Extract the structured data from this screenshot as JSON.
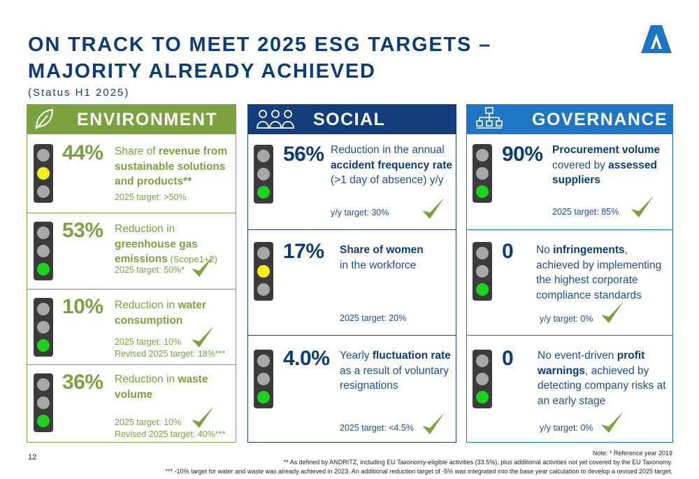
{
  "header": {
    "title_line1": "ON TRACK TO MEET 2025 ESG TARGETS –",
    "title_line2": "MAJORITY ALREADY ACHIEVED",
    "subtitle": "(Status H1 2025)",
    "logo": "andritz-logo-icon"
  },
  "colors": {
    "environment": "#7ba23f",
    "social": "#123f7b",
    "governance": "#1f75c4",
    "light_green": "#1fd11f",
    "light_yellow": "#f4ef1a",
    "light_off": "#a8a8a8"
  },
  "environment": {
    "title": "ENVIRONMENT",
    "icon": "leaf-icon",
    "items": [
      {
        "value": "44%",
        "pre": "Share of ",
        "bold": "revenue from sustainable solutions and products**",
        "post": "",
        "target": "2025 target: >50%",
        "target2": "",
        "light": "yellow",
        "check": false
      },
      {
        "value": "53%",
        "pre": "Reduction in ",
        "bold": "greenhouse gas emissions",
        "post": " (Scope1+2)",
        "target": "2025 target: 50%*",
        "target2": "",
        "light": "green",
        "check": true
      },
      {
        "value": "10%",
        "pre": "Reduction in ",
        "bold": "water consumption",
        "post": "",
        "target": "2025 target: 10%",
        "target2": "Revised 2025 target: 18%***",
        "light": "green",
        "check": true
      },
      {
        "value": "36%",
        "pre": "Reduction in ",
        "bold": "waste volume",
        "post": "",
        "target": "2025 target: 10%",
        "target2": "Revised 2025 target: 40%***",
        "light": "green",
        "check": true
      }
    ]
  },
  "social": {
    "title": "SOCIAL",
    "icon": "people-icon",
    "items": [
      {
        "value": "56%",
        "pre": "Reduction in the annual ",
        "bold": "accident frequency rate",
        "post": " (>1 day of absence) y/y",
        "target": "y/y target: 30%",
        "light": "green",
        "check": true
      },
      {
        "value": "17%",
        "pre": "",
        "bold": "Share of women",
        "post": " in the workforce",
        "target": "2025 target: 20%",
        "light": "yellow",
        "check": false
      },
      {
        "value": "4.0%",
        "pre": "Yearly ",
        "bold": "fluctuation rate",
        "post": " as a result of voluntary resignations",
        "target": "2025 target: <4.5%",
        "light": "green",
        "check": true
      }
    ]
  },
  "governance": {
    "title": "GOVERNANCE",
    "icon": "org-chart-icon",
    "items": [
      {
        "value": "90%",
        "pre": "",
        "bold": "Procurement volume",
        "mid": " covered by ",
        "bold2": "assessed suppliers",
        "post": "",
        "target": "2025 target: 85%",
        "light": "green",
        "check": true
      },
      {
        "value": "0",
        "pre": "No ",
        "bold": "infringements",
        "mid": ", achieved by implementing the highest corporate compliance standards",
        "bold2": "",
        "post": "",
        "target": "y/y target: 0%",
        "light": "green",
        "check": true
      },
      {
        "value": "0",
        "pre": "No event-driven ",
        "bold": "profit warnings",
        "mid": ", achieved by detecting company risks at an early stage",
        "bold2": "",
        "post": "",
        "target": "y/y target: 0%",
        "light": "green",
        "check": true
      }
    ]
  },
  "footer": {
    "page_number": "12",
    "note1": "Note: * Reference year 2019",
    "note2": "** As defined by ANDRITZ, including EU Taxonomy-eligible activities (33.5%), plus additional activities not yet covered by the EU Taxonomy.",
    "note3": "*** -10% target for water and waste was already achieved in 2023. An additional reduction target of -5% was integrated into the base year calculation to develop a revised 2025 target."
  }
}
